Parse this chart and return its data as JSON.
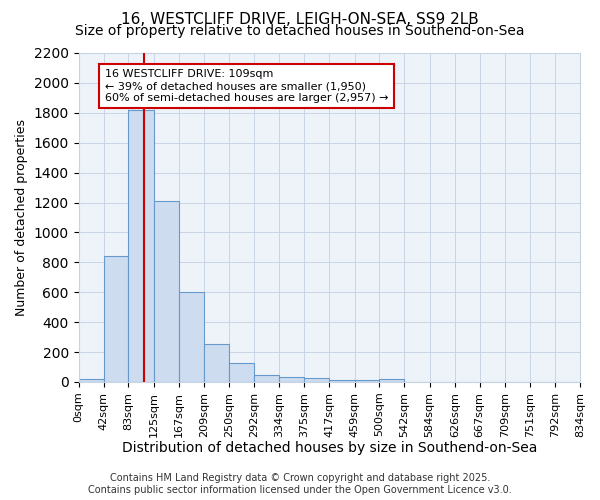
{
  "title1": "16, WESTCLIFF DRIVE, LEIGH-ON-SEA, SS9 2LB",
  "title2": "Size of property relative to detached houses in Southend-on-Sea",
  "xlabel": "Distribution of detached houses by size in Southend-on-Sea",
  "ylabel": "Number of detached properties",
  "footer1": "Contains HM Land Registry data © Crown copyright and database right 2025.",
  "footer2": "Contains public sector information licensed under the Open Government Licence v3.0.",
  "bar_color": "#cddcef",
  "bar_edge_color": "#6699cc",
  "grid_color": "#c8d4e4",
  "background_color": "#ffffff",
  "plot_bg_color": "#eef3fa",
  "vline_color": "#cc0000",
  "vline_x": 109,
  "annotation_line1": "16 WESTCLIFF DRIVE: 109sqm",
  "annotation_line2": "← 39% of detached houses are smaller (1,950)",
  "annotation_line3": "60% of semi-detached houses are larger (2,957) →",
  "annotation_box_color": "#cc0000",
  "ylim": [
    0,
    2200
  ],
  "yticks": [
    0,
    200,
    400,
    600,
    800,
    1000,
    1200,
    1400,
    1600,
    1800,
    2000,
    2200
  ],
  "bin_edges": [
    0,
    42,
    83,
    125,
    167,
    209,
    250,
    292,
    334,
    375,
    417,
    459,
    500,
    542,
    584,
    626,
    667,
    709,
    751,
    792,
    834
  ],
  "bar_heights": [
    20,
    840,
    1820,
    1210,
    600,
    255,
    130,
    50,
    35,
    25,
    10,
    10,
    20,
    0,
    0,
    0,
    0,
    0,
    0,
    0
  ],
  "tick_labels": [
    "0sqm",
    "42sqm",
    "83sqm",
    "125sqm",
    "167sqm",
    "209sqm",
    "250sqm",
    "292sqm",
    "334sqm",
    "375sqm",
    "417sqm",
    "459sqm",
    "500sqm",
    "542sqm",
    "584sqm",
    "626sqm",
    "667sqm",
    "709sqm",
    "751sqm",
    "792sqm",
    "834sqm"
  ],
  "title1_fontsize": 11,
  "title2_fontsize": 10,
  "ylabel_fontsize": 9,
  "xlabel_fontsize": 10,
  "tick_fontsize": 8,
  "footer_fontsize": 7
}
